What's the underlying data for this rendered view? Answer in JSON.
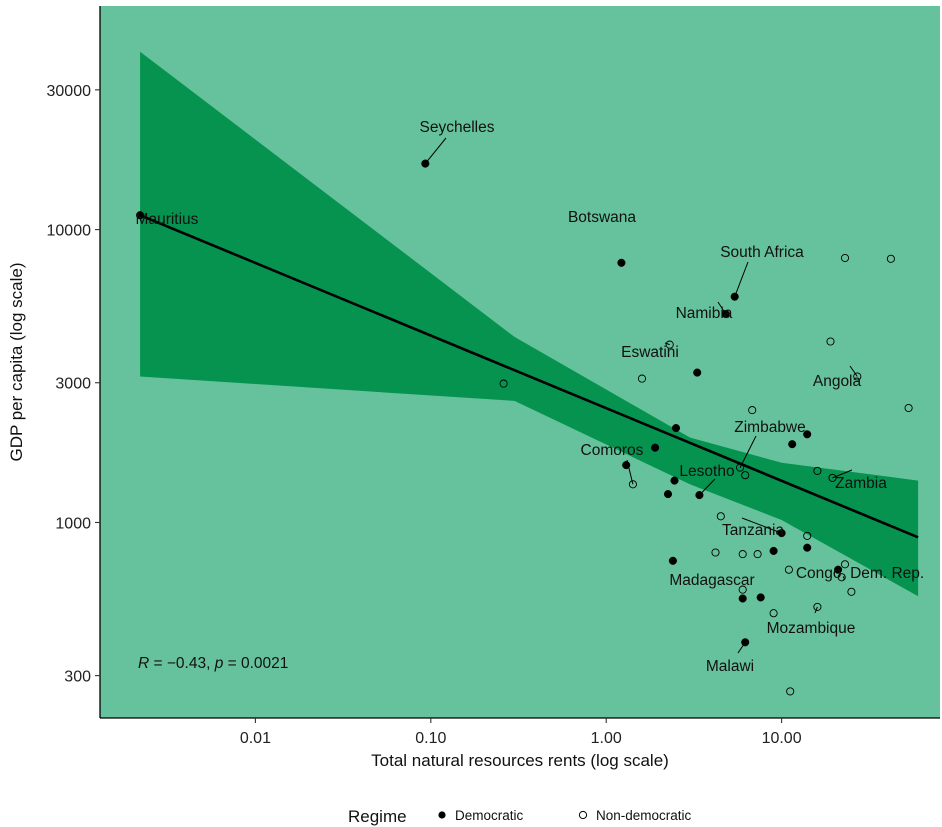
{
  "chart_data": {
    "type": "scatter",
    "title": "",
    "xlabel": "Total natural resources rents (log scale)",
    "ylabel": "GDP per capita (log scale)",
    "x_scale": "log",
    "y_scale": "log",
    "xlim": [
      0.0013,
      80
    ],
    "ylim": [
      215,
      58000
    ],
    "x_ticks": [
      {
        "value": 0.01,
        "label": "0.01"
      },
      {
        "value": 0.1,
        "label": "0.10"
      },
      {
        "value": 1,
        "label": "1.00"
      },
      {
        "value": 10,
        "label": "10.00"
      }
    ],
    "y_ticks": [
      {
        "value": 300,
        "label": "300"
      },
      {
        "value": 1000,
        "label": "1000"
      },
      {
        "value": 3000,
        "label": "3000"
      },
      {
        "value": 10000,
        "label": "10000"
      },
      {
        "value": 30000,
        "label": "30000"
      }
    ],
    "grid": false,
    "background_color": "#66c29c",
    "band_color": "#05934f",
    "line_color": "#000000",
    "legend": {
      "title": "Regime",
      "position": "bottom",
      "items": [
        {
          "label": "Democratic",
          "marker": "filled-circle"
        },
        {
          "label": "Non-democratic",
          "marker": "open-circle"
        }
      ]
    },
    "annotation": {
      "r_symbol": "R",
      "r_value": " = −0.43, ",
      "p_symbol": "p",
      "p_value": " = 0.0021"
    },
    "regression": {
      "line": [
        {
          "x": 0.0022,
          "y": 11200
        },
        {
          "x": 60,
          "y": 890
        }
      ],
      "band_upper": [
        {
          "x": 0.0022,
          "y": 40500
        },
        {
          "x": 0.3,
          "y": 4300
        },
        {
          "x": 3,
          "y": 1950
        },
        {
          "x": 10,
          "y": 1600
        },
        {
          "x": 60,
          "y": 1390
        }
      ],
      "band_lower": [
        {
          "x": 0.0022,
          "y": 3150
        },
        {
          "x": 0.3,
          "y": 2600
        },
        {
          "x": 3,
          "y": 1350
        },
        {
          "x": 10,
          "y": 1020
        },
        {
          "x": 60,
          "y": 560
        }
      ]
    },
    "series": [
      {
        "name": "Democratic",
        "points": [
          {
            "label": "Mauritius",
            "x": 0.0022,
            "y": 11200
          },
          {
            "label": "Seychelles",
            "x": 0.093,
            "y": 16800
          },
          {
            "label": "Botswana",
            "x": 1.22,
            "y": 7700
          },
          {
            "label": "South Africa",
            "x": 5.4,
            "y": 5900
          },
          {
            "label": "Namibia",
            "x": 4.8,
            "y": 5150
          },
          {
            "x": 3.3,
            "y": 3250
          },
          {
            "x": 2.5,
            "y": 2100
          },
          {
            "x": 14,
            "y": 2000
          },
          {
            "x": 11.5,
            "y": 1850
          },
          {
            "x": 1.9,
            "y": 1800
          },
          {
            "x": 1.3,
            "y": 1570
          },
          {
            "x": 2.45,
            "y": 1390
          },
          {
            "label": "Lesotho",
            "x": 3.4,
            "y": 1240
          },
          {
            "x": 2.25,
            "y": 1250
          },
          {
            "label": "Tanzania",
            "x": 10,
            "y": 920
          },
          {
            "x": 14,
            "y": 820
          },
          {
            "x": 9,
            "y": 800
          },
          {
            "x": 2.4,
            "y": 740
          },
          {
            "label": "Congo, Dem. Rep.",
            "x": 21,
            "y": 690
          },
          {
            "label": "Madagascar",
            "x": 6,
            "y": 550
          },
          {
            "x": 7.6,
            "y": 555
          },
          {
            "label": "Malawi",
            "x": 6.2,
            "y": 390
          }
        ]
      },
      {
        "name": "Non-democratic",
        "points": [
          {
            "x": 23,
            "y": 8000
          },
          {
            "x": 42,
            "y": 7950
          },
          {
            "x": 19,
            "y": 4150
          },
          {
            "label": "Eswatini",
            "x": 2.3,
            "y": 4050
          },
          {
            "x": 1.6,
            "y": 3100
          },
          {
            "x": 0.26,
            "y": 2980
          },
          {
            "label": "Angola",
            "x": 27,
            "y": 3150
          },
          {
            "x": 6.8,
            "y": 2420
          },
          {
            "x": 53,
            "y": 2460
          },
          {
            "label": "Zimbabwe",
            "x": 5.8,
            "y": 1540
          },
          {
            "x": 6.2,
            "y": 1450
          },
          {
            "x": 16,
            "y": 1500
          },
          {
            "label": "Zambia",
            "x": 19.5,
            "y": 1420
          },
          {
            "label": "Comoros",
            "x": 1.42,
            "y": 1350
          },
          {
            "x": 4.5,
            "y": 1050
          },
          {
            "x": 14,
            "y": 900
          },
          {
            "x": 4.2,
            "y": 790
          },
          {
            "x": 6,
            "y": 780
          },
          {
            "x": 7.3,
            "y": 780
          },
          {
            "x": 11,
            "y": 690
          },
          {
            "x": 23,
            "y": 720
          },
          {
            "x": 22,
            "y": 650
          },
          {
            "x": 25,
            "y": 580
          },
          {
            "x": 6,
            "y": 590
          },
          {
            "label": "Mozambique",
            "x": 16,
            "y": 515
          },
          {
            "x": 9,
            "y": 490
          },
          {
            "x": 11.2,
            "y": 265
          }
        ]
      }
    ]
  }
}
